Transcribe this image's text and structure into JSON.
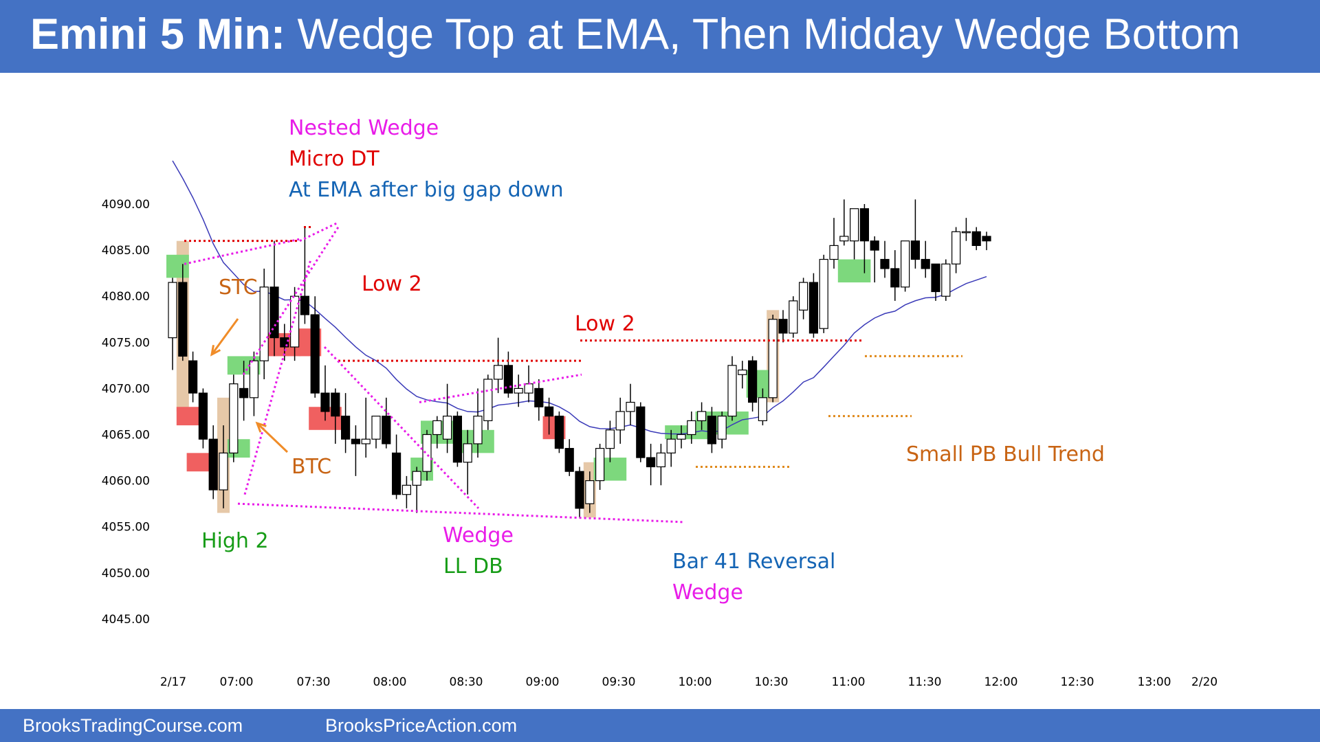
{
  "header": {
    "title_bold": "Emini 5 Min:",
    "title_rest": " Wedge Top at EMA, Then Midday Wedge Bottom"
  },
  "footer": {
    "left_link": "BrooksTradingCourse.com",
    "right_link": "BrooksPriceAction.com"
  },
  "colors": {
    "header_bg": "#4472c4",
    "bull_body": "#ffffff",
    "bear_body": "#000000",
    "ema": "#3a3ab8",
    "green_zone": "#7dd87d",
    "red_zone": "#f06060",
    "tan_zone": "#e6c8a8",
    "magenta": "#e81ce8",
    "red": "#e00000",
    "orange": "#c86414",
    "blue": "#1464b4",
    "green": "#169c16"
  },
  "chart_data": {
    "type": "candlestick",
    "ylim": [
      4042,
      4096
    ],
    "y_ticks": [
      "4090.00",
      "4085.00",
      "4080.00",
      "4075.00",
      "4070.00",
      "4065.00",
      "4060.00",
      "4055.00",
      "4050.00",
      "4045.00"
    ],
    "x_ticks": [
      "2/17",
      "07:00",
      "07:30",
      "08:00",
      "08:30",
      "09:00",
      "09:30",
      "10:00",
      "10:30",
      "11:00",
      "11:30",
      "12:00",
      "12:30",
      "13:00",
      "2/20"
    ],
    "grid": false,
    "candles": [
      {
        "o": 4075.5,
        "h": 4082.0,
        "l": 4072.0,
        "c": 4081.5
      },
      {
        "o": 4081.5,
        "h": 4083.5,
        "l": 4073.0,
        "c": 4073.5
      },
      {
        "o": 4073.0,
        "h": 4074.0,
        "l": 4068.5,
        "c": 4069.5
      },
      {
        "o": 4069.5,
        "h": 4070.0,
        "l": 4063.5,
        "c": 4064.5
      },
      {
        "o": 4064.5,
        "h": 4066.0,
        "l": 4058.0,
        "c": 4059.0
      },
      {
        "o": 4059.0,
        "h": 4066.0,
        "l": 4057.0,
        "c": 4063.0
      },
      {
        "o": 4063.0,
        "h": 4071.5,
        "l": 4062.0,
        "c": 4070.5
      },
      {
        "o": 4070.0,
        "h": 4073.0,
        "l": 4066.5,
        "c": 4069.0
      },
      {
        "o": 4069.0,
        "h": 4074.0,
        "l": 4067.0,
        "c": 4073.0
      },
      {
        "o": 4073.0,
        "h": 4083.0,
        "l": 4071.0,
        "c": 4081.0
      },
      {
        "o": 4081.0,
        "h": 4086.0,
        "l": 4073.5,
        "c": 4075.5
      },
      {
        "o": 4075.5,
        "h": 4077.0,
        "l": 4073.0,
        "c": 4074.5
      },
      {
        "o": 4074.5,
        "h": 4081.0,
        "l": 4073.0,
        "c": 4080.0
      },
      {
        "o": 4080.0,
        "h": 4087.5,
        "l": 4077.0,
        "c": 4078.0
      },
      {
        "o": 4078.0,
        "h": 4080.0,
        "l": 4069.0,
        "c": 4069.5
      },
      {
        "o": 4069.5,
        "h": 4072.5,
        "l": 4066.5,
        "c": 4067.5
      },
      {
        "o": 4069.5,
        "h": 4070.0,
        "l": 4064.0,
        "c": 4067.0
      },
      {
        "o": 4067.0,
        "h": 4069.5,
        "l": 4063.0,
        "c": 4064.5
      },
      {
        "o": 4064.5,
        "h": 4066.0,
        "l": 4060.5,
        "c": 4064.0
      },
      {
        "o": 4064.0,
        "h": 4069.0,
        "l": 4062.5,
        "c": 4064.5
      },
      {
        "o": 4064.5,
        "h": 4067.0,
        "l": 4063.5,
        "c": 4067.0
      },
      {
        "o": 4067.0,
        "h": 4069.0,
        "l": 4063.5,
        "c": 4064.0
      },
      {
        "o": 4063.0,
        "h": 4065.0,
        "l": 4058.0,
        "c": 4058.5
      },
      {
        "o": 4058.5,
        "h": 4060.5,
        "l": 4057.0,
        "c": 4059.5
      },
      {
        "o": 4059.5,
        "h": 4061.5,
        "l": 4056.5,
        "c": 4061.0
      },
      {
        "o": 4061.0,
        "h": 4065.5,
        "l": 4060.0,
        "c": 4065.0
      },
      {
        "o": 4065.0,
        "h": 4067.0,
        "l": 4063.5,
        "c": 4066.5
      },
      {
        "o": 4064.5,
        "h": 4070.5,
        "l": 4063.0,
        "c": 4067.0
      },
      {
        "o": 4067.0,
        "h": 4067.5,
        "l": 4061.5,
        "c": 4062.0
      },
      {
        "o": 4062.0,
        "h": 4065.5,
        "l": 4058.5,
        "c": 4064.0
      },
      {
        "o": 4064.0,
        "h": 4070.0,
        "l": 4062.5,
        "c": 4067.0
      },
      {
        "o": 4066.5,
        "h": 4071.5,
        "l": 4065.5,
        "c": 4071.0
      },
      {
        "o": 4071.0,
        "h": 4075.5,
        "l": 4069.5,
        "c": 4072.5
      },
      {
        "o": 4072.5,
        "h": 4074.0,
        "l": 4069.0,
        "c": 4069.5
      },
      {
        "o": 4069.5,
        "h": 4071.5,
        "l": 4068.0,
        "c": 4070.0
      },
      {
        "o": 4069.5,
        "h": 4072.5,
        "l": 4068.5,
        "c": 4070.5
      },
      {
        "o": 4070.0,
        "h": 4071.0,
        "l": 4066.5,
        "c": 4068.0
      },
      {
        "o": 4068.0,
        "h": 4069.0,
        "l": 4065.0,
        "c": 4067.0
      },
      {
        "o": 4067.0,
        "h": 4067.5,
        "l": 4063.0,
        "c": 4063.5
      },
      {
        "o": 4063.5,
        "h": 4064.5,
        "l": 4060.5,
        "c": 4061.0
      },
      {
        "o": 4061.0,
        "h": 4061.5,
        "l": 4056.0,
        "c": 4057.0
      },
      {
        "o": 4057.5,
        "h": 4061.0,
        "l": 4056.5,
        "c": 4060.0
      },
      {
        "o": 4060.0,
        "h": 4064.0,
        "l": 4059.0,
        "c": 4063.5
      },
      {
        "o": 4063.5,
        "h": 4066.5,
        "l": 4062.0,
        "c": 4065.5
      },
      {
        "o": 4065.5,
        "h": 4069.0,
        "l": 4064.0,
        "c": 4067.5
      },
      {
        "o": 4067.5,
        "h": 4070.5,
        "l": 4066.0,
        "c": 4068.5
      },
      {
        "o": 4068.0,
        "h": 4068.5,
        "l": 4062.0,
        "c": 4062.5
      },
      {
        "o": 4062.5,
        "h": 4064.0,
        "l": 4059.5,
        "c": 4061.5
      },
      {
        "o": 4061.5,
        "h": 4064.0,
        "l": 4059.5,
        "c": 4063.0
      },
      {
        "o": 4063.0,
        "h": 4065.5,
        "l": 4061.5,
        "c": 4064.5
      },
      {
        "o": 4064.5,
        "h": 4066.0,
        "l": 4063.5,
        "c": 4065.0
      },
      {
        "o": 4065.0,
        "h": 4067.5,
        "l": 4064.0,
        "c": 4066.5
      },
      {
        "o": 4066.5,
        "h": 4068.5,
        "l": 4065.5,
        "c": 4067.5
      },
      {
        "o": 4067.0,
        "h": 4068.0,
        "l": 4063.0,
        "c": 4064.0
      },
      {
        "o": 4064.5,
        "h": 4067.5,
        "l": 4063.5,
        "c": 4067.0
      },
      {
        "o": 4067.0,
        "h": 4073.5,
        "l": 4066.5,
        "c": 4072.5
      },
      {
        "o": 4071.5,
        "h": 4073.0,
        "l": 4070.0,
        "c": 4072.0
      },
      {
        "o": 4073.0,
        "h": 4073.5,
        "l": 4067.5,
        "c": 4068.5
      },
      {
        "o": 4066.5,
        "h": 4070.0,
        "l": 4066.0,
        "c": 4069.0
      },
      {
        "o": 4069.0,
        "h": 4078.0,
        "l": 4068.5,
        "c": 4077.5
      },
      {
        "o": 4077.5,
        "h": 4078.5,
        "l": 4075.0,
        "c": 4076.0
      },
      {
        "o": 4076.0,
        "h": 4080.0,
        "l": 4075.5,
        "c": 4079.5
      },
      {
        "o": 4078.5,
        "h": 4082.0,
        "l": 4077.5,
        "c": 4081.5
      },
      {
        "o": 4081.5,
        "h": 4082.5,
        "l": 4075.5,
        "c": 4076.0
      },
      {
        "o": 4076.5,
        "h": 4084.5,
        "l": 4076.0,
        "c": 4084.0
      },
      {
        "o": 4084.0,
        "h": 4088.5,
        "l": 4083.0,
        "c": 4085.5
      },
      {
        "o": 4086.0,
        "h": 4090.5,
        "l": 4085.5,
        "c": 4086.5
      },
      {
        "o": 4086.0,
        "h": 4089.0,
        "l": 4084.0,
        "c": 4089.5
      },
      {
        "o": 4089.5,
        "h": 4090.0,
        "l": 4082.5,
        "c": 4086.0
      },
      {
        "o": 4086.0,
        "h": 4086.5,
        "l": 4081.5,
        "c": 4085.0
      },
      {
        "o": 4084.0,
        "h": 4086.0,
        "l": 4082.0,
        "c": 4083.0
      },
      {
        "o": 4083.0,
        "h": 4085.0,
        "l": 4079.5,
        "c": 4081.0
      },
      {
        "o": 4081.0,
        "h": 4086.0,
        "l": 4080.5,
        "c": 4086.0
      },
      {
        "o": 4086.0,
        "h": 4090.5,
        "l": 4083.0,
        "c": 4084.0
      },
      {
        "o": 4084.0,
        "h": 4086.0,
        "l": 4082.0,
        "c": 4083.0
      },
      {
        "o": 4083.5,
        "h": 4083.5,
        "l": 4079.5,
        "c": 4080.5
      },
      {
        "o": 4080.0,
        "h": 4084.0,
        "l": 4079.5,
        "c": 4083.5
      },
      {
        "o": 4083.5,
        "h": 4087.5,
        "l": 4082.5,
        "c": 4087.0
      },
      {
        "o": 4087.0,
        "h": 4088.5,
        "l": 4086.0,
        "c": 4087.0
      },
      {
        "o": 4087.0,
        "h": 4087.5,
        "l": 4085.0,
        "c": 4085.5
      },
      {
        "o": 4086.5,
        "h": 4087.0,
        "l": 4085.0,
        "c": 4086.0
      }
    ],
    "annotations": [
      {
        "text": "Nested Wedge",
        "color": "magenta"
      },
      {
        "text": "Micro DT",
        "color": "red"
      },
      {
        "text": "At EMA after big gap down",
        "color": "blue"
      },
      {
        "text": "STC",
        "color": "orange"
      },
      {
        "text": "Low 2",
        "color": "red"
      },
      {
        "text": "Low 2",
        "color": "red"
      },
      {
        "text": "BTC",
        "color": "orange"
      },
      {
        "text": "High 2",
        "color": "green"
      },
      {
        "text": "Wedge",
        "color": "magenta"
      },
      {
        "text": "LL DB",
        "color": "green"
      },
      {
        "text": "Bar 41 Reversal",
        "color": "blue"
      },
      {
        "text": "Wedge",
        "color": "magenta"
      },
      {
        "text": "Small PB Bull Trend",
        "color": "orange"
      }
    ]
  }
}
